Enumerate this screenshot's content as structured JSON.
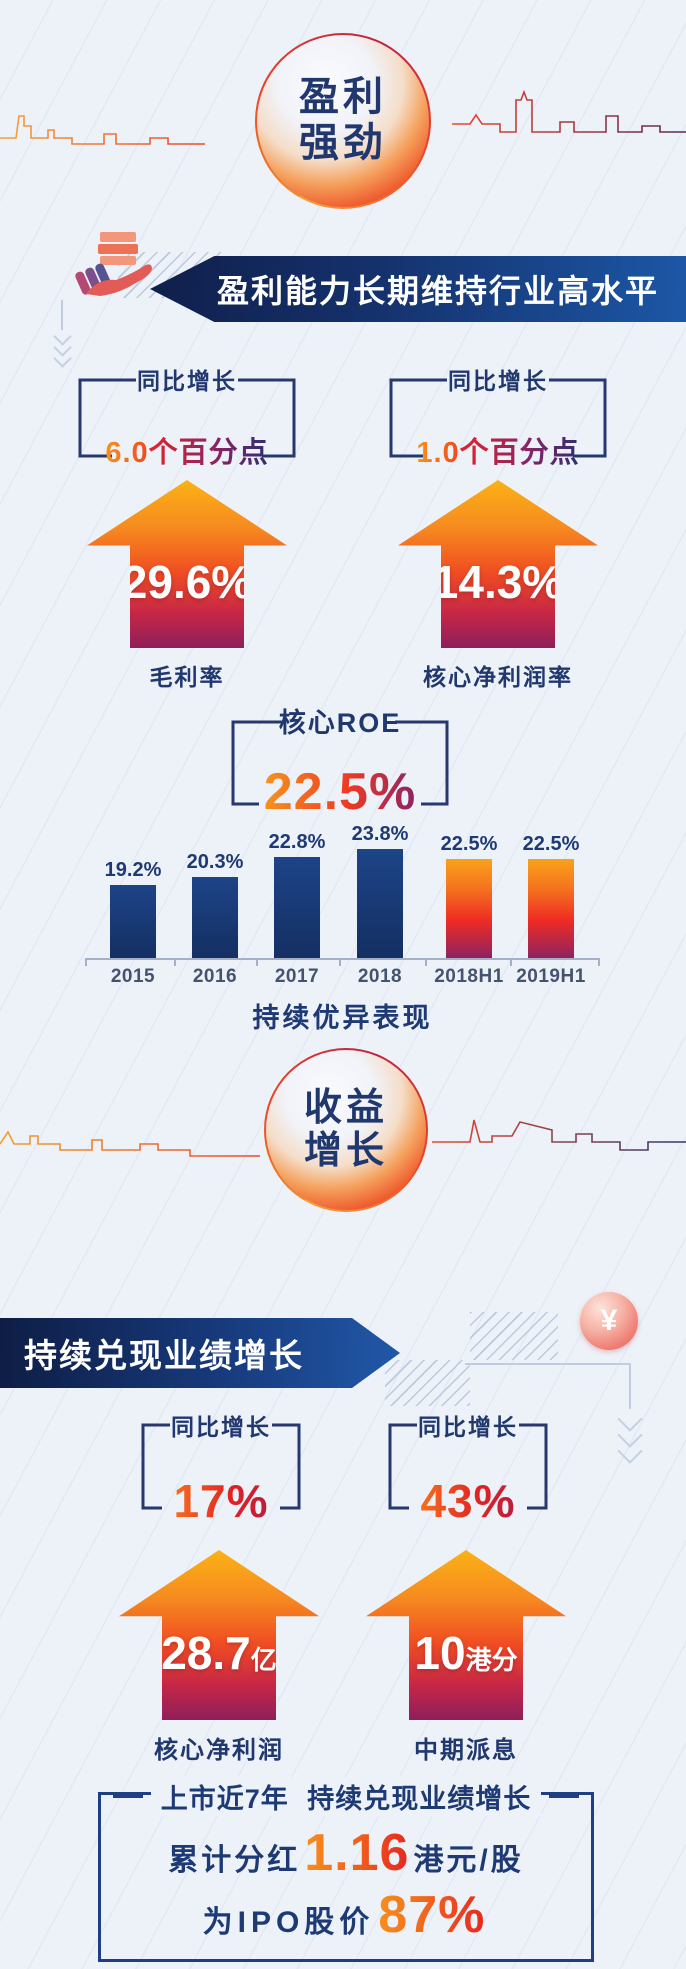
{
  "palette": {
    "background": "#edf1f8",
    "navy": "#16346f",
    "banner_blue": "#1c57a6",
    "orange": "#f7941d",
    "red": "#ee3a24",
    "magenta": "#8c2363",
    "coin_pink": "#ef7b72"
  },
  "section_profit": {
    "badge_lines": [
      "盈利",
      "强劲"
    ],
    "banner_title": "盈利能力长期维持行业高水平",
    "stats": [
      {
        "bracket_label": "同比增长",
        "delta_number": "6.0",
        "delta_unit": "个百分点",
        "main_value": "29.6%",
        "metric": "毛利率"
      },
      {
        "bracket_label": "同比增长",
        "delta_number": "1.0",
        "delta_unit": "个百分点",
        "main_value": "14.3%",
        "metric": "核心净利润率"
      }
    ],
    "roe_label": "核心ROE",
    "roe_value": "22.5%"
  },
  "chart_data": {
    "type": "bar",
    "categories": [
      "2015",
      "2016",
      "2017",
      "2018",
      "2018H1",
      "2019H1"
    ],
    "values": [
      19.2,
      20.3,
      22.8,
      23.8,
      22.5,
      22.5
    ],
    "value_labels": [
      "19.2%",
      "20.3%",
      "22.8%",
      "23.8%",
      "22.5%",
      "22.5%"
    ],
    "unit": "%",
    "ylim": [
      0,
      26
    ],
    "bar_colors": [
      "#17376f",
      "#17376f",
      "#17376f",
      "#17376f",
      "orange-red-gradient",
      "orange-red-gradient"
    ],
    "caption": "持续优异表现",
    "legend": "none",
    "grid": "off"
  },
  "section_income": {
    "badge_lines": [
      "收益",
      "增长"
    ],
    "banner_title": "持续兑现业绩增长",
    "coin_symbol": "¥",
    "stats": [
      {
        "bracket_label": "同比增长",
        "growth": "17%",
        "main_number": "28.7",
        "main_unit": "亿",
        "metric": "核心净利润"
      },
      {
        "bracket_label": "同比增长",
        "growth": "43%",
        "main_number": "10",
        "main_unit": "港分",
        "metric": "中期派息"
      }
    ],
    "summary": {
      "title": "上市近7年 持续兑现业绩增长",
      "line1_prefix": "累计分红",
      "line1_value": "1.16",
      "line1_suffix": "港元/股",
      "line2_prefix": "为IPO股价",
      "line2_value": "87%"
    }
  }
}
